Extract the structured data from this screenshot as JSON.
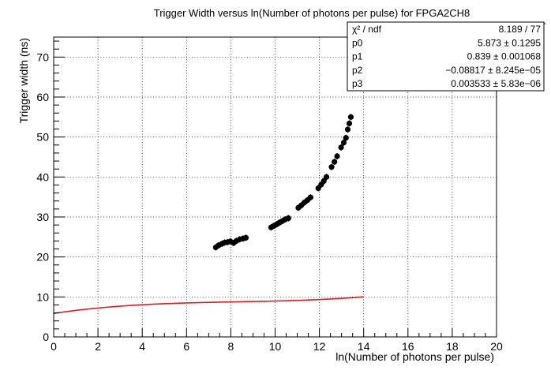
{
  "chart_data": {
    "type": "scatter",
    "title": "Trigger Width versus ln(Number of photons per pulse) for FPGA2CH8",
    "xlabel": "ln(Number of photons per pulse)",
    "ylabel": "Trigger width (ns)",
    "xlim": [
      0,
      20
    ],
    "ylim": [
      0,
      75
    ],
    "xticks": [
      0,
      2,
      4,
      6,
      8,
      10,
      12,
      14,
      16,
      18,
      20
    ],
    "yticks": [
      0,
      10,
      20,
      30,
      40,
      50,
      60,
      70
    ],
    "xtick_labels": [
      "0",
      "2",
      "4",
      "6",
      "8",
      "10",
      "12",
      "14",
      "16",
      "18",
      "20"
    ],
    "ytick_labels": [
      "0",
      "10",
      "20",
      "30",
      "40",
      "50",
      "60",
      "70"
    ],
    "grid": true,
    "fit": {
      "color": "#e31a1c",
      "params": [
        5.873,
        0.839,
        -0.08817,
        0.003533
      ],
      "x_range": [
        0,
        14
      ]
    },
    "stats_box": {
      "rows": [
        {
          "name": "χ² / ndf",
          "value": "8.189 / 77"
        },
        {
          "name": "p0",
          "value": "5.873 ± 0.1295"
        },
        {
          "name": "p1",
          "value": "0.839 ± 0.001068"
        },
        {
          "name": "p2",
          "value": "−0.08817 ± 8.245e−05"
        },
        {
          "name": "p3",
          "value": "0.003533 ± 5.83e−06"
        }
      ]
    },
    "series": [
      {
        "marker": "#000000",
        "x": [
          7.32,
          7.45,
          7.6,
          7.72,
          7.85,
          7.98,
          8.12,
          8.25,
          8.4,
          8.55,
          8.68,
          9.82,
          9.95,
          10.08,
          10.2,
          10.33,
          10.46,
          10.6,
          11.05,
          11.18,
          11.32,
          11.46,
          11.6,
          11.95,
          12.08,
          12.2,
          12.32,
          12.55,
          12.68,
          12.8,
          12.98,
          13.1,
          13.2,
          13.28,
          13.35,
          13.42
        ],
        "y": [
          22.4,
          22.9,
          23.3,
          23.6,
          23.7,
          23.9,
          23.5,
          24.0,
          24.4,
          24.6,
          24.8,
          27.4,
          27.8,
          28.2,
          28.6,
          29.0,
          29.4,
          29.7,
          32.3,
          32.9,
          33.6,
          34.2,
          34.9,
          37.2,
          38.1,
          39.0,
          40.0,
          42.5,
          43.8,
          45.2,
          47.4,
          48.6,
          49.8,
          51.9,
          53.4,
          55.0
        ]
      }
    ]
  }
}
